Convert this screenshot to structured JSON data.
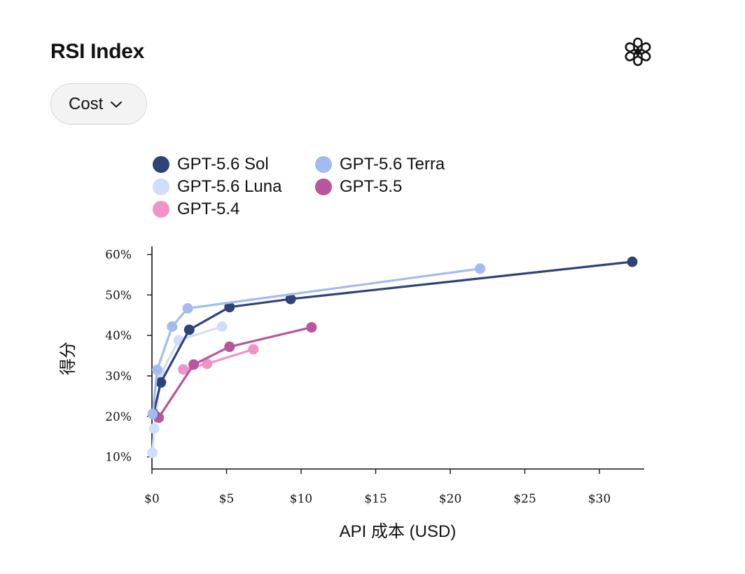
{
  "header": {
    "title": "RSI Index"
  },
  "brand_icon": "openai-logo-icon",
  "dropdown": {
    "label": "Cost",
    "icon": "chevron-down-icon"
  },
  "chart_data": {
    "type": "line",
    "xlabel": "API 成本 (USD)",
    "ylabel": "得分",
    "xlim": [
      0,
      33
    ],
    "ylim": [
      7,
      62
    ],
    "x_ticks": [
      {
        "value": 0,
        "label": "$0"
      },
      {
        "value": 5,
        "label": "$5"
      },
      {
        "value": 10,
        "label": "$10"
      },
      {
        "value": 15,
        "label": "$15"
      },
      {
        "value": 20,
        "label": "$20"
      },
      {
        "value": 25,
        "label": "$25"
      },
      {
        "value": 30,
        "label": "$30"
      }
    ],
    "y_ticks": [
      {
        "value": 10,
        "label": "10%"
      },
      {
        "value": 20,
        "label": "20%"
      },
      {
        "value": 30,
        "label": "30%"
      },
      {
        "value": 40,
        "label": "40%"
      },
      {
        "value": 50,
        "label": "50%"
      },
      {
        "value": 60,
        "label": "60%"
      }
    ],
    "grid": false,
    "legend_position": "top",
    "series": [
      {
        "name": "GPT-5.6 Luna",
        "color": "#cfdefa",
        "points": [
          [
            0.03,
            11.0
          ],
          [
            0.15,
            17.0
          ],
          [
            0.6,
            30.5
          ],
          [
            1.8,
            38.8
          ],
          [
            4.7,
            42.2
          ]
        ]
      },
      {
        "name": "GPT-5.4",
        "color": "#ef93c9",
        "points": [
          [
            2.1,
            31.6
          ],
          [
            3.7,
            33.0
          ],
          [
            6.8,
            36.6
          ]
        ]
      },
      {
        "name": "GPT-5.5",
        "color": "#b9559a",
        "points": [
          [
            0.45,
            19.7
          ],
          [
            2.8,
            32.8
          ],
          [
            5.2,
            37.2
          ],
          [
            10.7,
            42.0
          ]
        ]
      },
      {
        "name": "GPT-5.6 Sol",
        "color": "#2e4477",
        "points": [
          [
            0.1,
            20.7
          ],
          [
            0.6,
            28.4
          ],
          [
            2.5,
            41.4
          ],
          [
            5.2,
            47.0
          ],
          [
            9.3,
            49.0
          ],
          [
            32.2,
            58.2
          ]
        ]
      },
      {
        "name": "GPT-5.6 Terra",
        "color": "#a3bbf1",
        "points": [
          [
            0.05,
            20.6
          ],
          [
            0.35,
            31.5
          ],
          [
            1.35,
            42.2
          ],
          [
            2.4,
            46.7
          ],
          [
            22.0,
            56.5
          ]
        ]
      }
    ],
    "legend": [
      {
        "name": "GPT-5.6 Sol",
        "color": "#2e4477"
      },
      {
        "name": "GPT-5.6 Terra",
        "color": "#a3bbf1"
      },
      {
        "name": "GPT-5.6 Luna",
        "color": "#cfdefa"
      },
      {
        "name": "GPT-5.5",
        "color": "#b9559a"
      },
      {
        "name": "GPT-5.4",
        "color": "#ef93c9"
      }
    ]
  }
}
